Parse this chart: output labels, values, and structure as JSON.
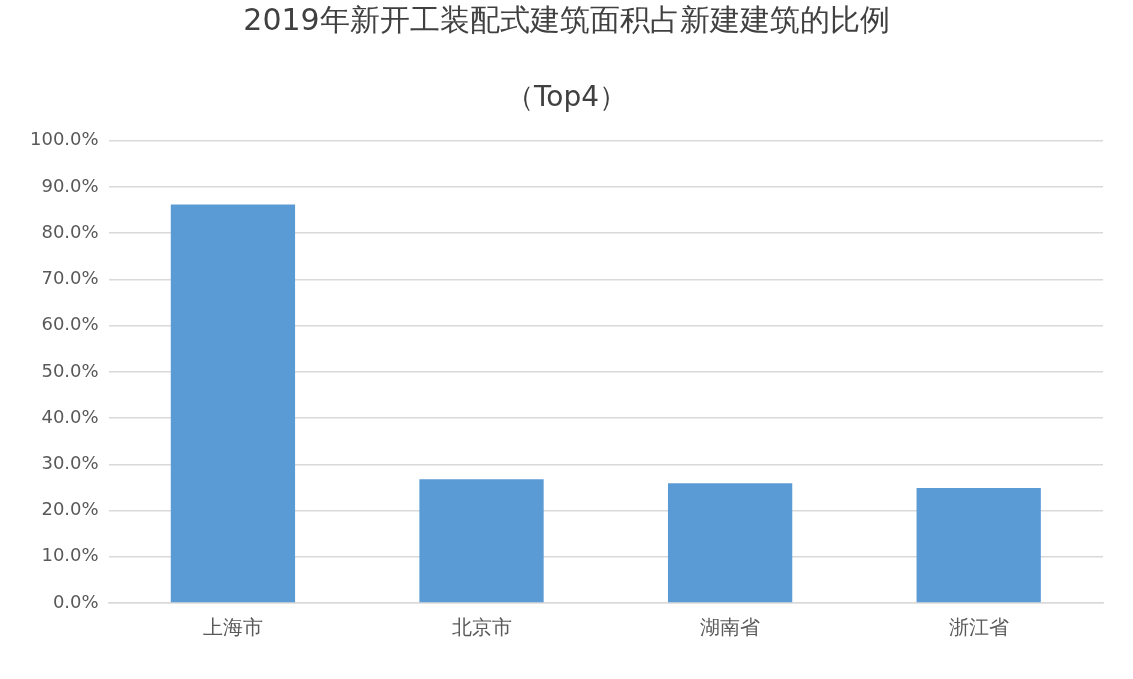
{
  "chart_data": {
    "type": "bar",
    "title": "2019年新开工装配式建筑面积占新建建筑的比例",
    "subtitle": "（Top4）",
    "categories": [
      "上海市",
      "北京市",
      "湖南省",
      "浙江省"
    ],
    "values": [
      86.2,
      26.8,
      25.9,
      24.9
    ],
    "color": "#5b9bd5",
    "ylim": [
      0,
      100
    ],
    "yticks": [
      {
        "value": 0,
        "label": "0.0%"
      },
      {
        "value": 10,
        "label": "10.0%"
      },
      {
        "value": 20,
        "label": "20.0%"
      },
      {
        "value": 30,
        "label": "30.0%"
      },
      {
        "value": 40,
        "label": "40.0%"
      },
      {
        "value": 50,
        "label": "50.0%"
      },
      {
        "value": 60,
        "label": "60.0%"
      },
      {
        "value": 70,
        "label": "70.0%"
      },
      {
        "value": 80,
        "label": "80.0%"
      },
      {
        "value": 90,
        "label": "90.0%"
      },
      {
        "value": 100,
        "label": "100.0%"
      }
    ],
    "grid": "y"
  }
}
